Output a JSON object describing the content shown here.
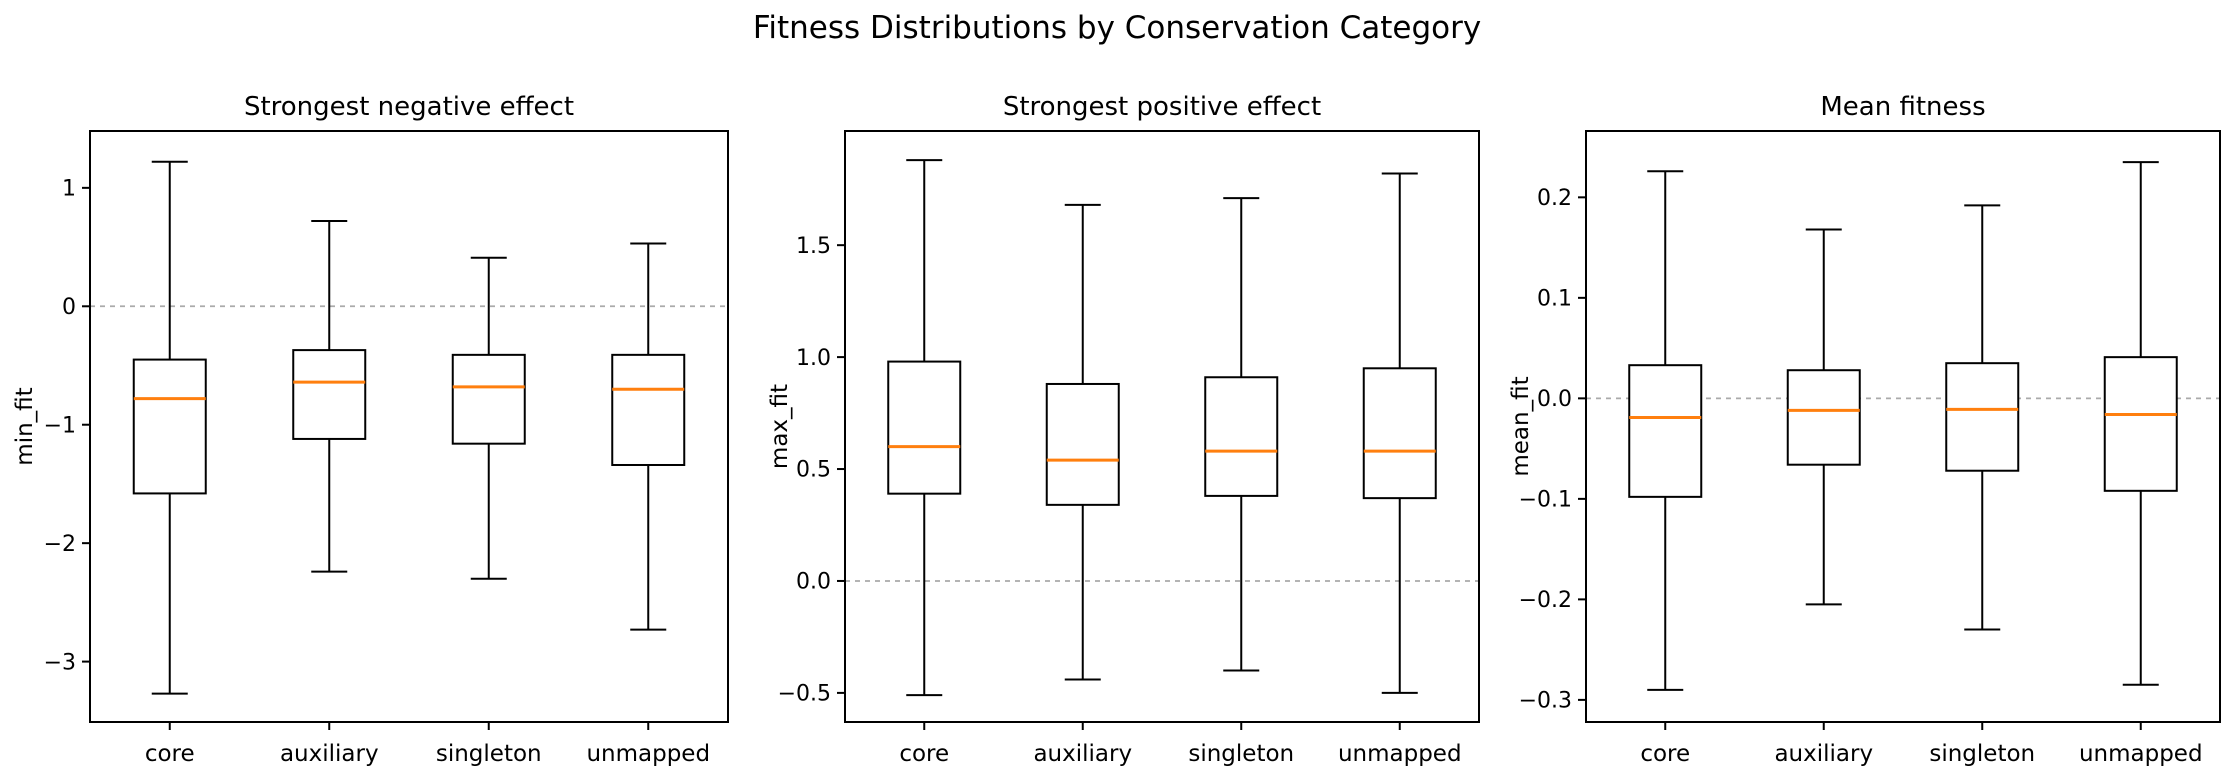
{
  "figure": {
    "suptitle": "Fitness Distributions by Conservation Category",
    "background_color": "#ffffff",
    "box_line_color": "#000000",
    "median_line_color": "#ff7f0e",
    "zero_line_color": "#aaaaaa",
    "categories": [
      "core",
      "auxiliary",
      "singleton",
      "unmapped"
    ]
  },
  "chart_data": [
    {
      "type": "box",
      "title": "Strongest negative effect",
      "ylabel": "min_fit",
      "categories": [
        "core",
        "auxiliary",
        "singleton",
        "unmapped"
      ],
      "yticks": [
        1,
        0,
        -1,
        -2,
        -3
      ],
      "ytick_labels": [
        "1",
        "0",
        "−1",
        "−2",
        "−3"
      ],
      "ylim": [
        -3.51,
        1.48
      ],
      "zero_line": 0,
      "grid": false,
      "series": [
        {
          "category": "core",
          "whisker_low": -3.27,
          "q1": -1.58,
          "median": -0.78,
          "q3": -0.45,
          "whisker_high": 1.22
        },
        {
          "category": "auxiliary",
          "whisker_low": -2.24,
          "q1": -1.12,
          "median": -0.64,
          "q3": -0.37,
          "whisker_high": 0.72
        },
        {
          "category": "singleton",
          "whisker_low": -2.3,
          "q1": -1.16,
          "median": -0.68,
          "q3": -0.41,
          "whisker_high": 0.41
        },
        {
          "category": "unmapped",
          "whisker_low": -2.73,
          "q1": -1.34,
          "median": -0.7,
          "q3": -0.41,
          "whisker_high": 0.53
        }
      ]
    },
    {
      "type": "box",
      "title": "Strongest positive effect",
      "ylabel": "max_fit",
      "categories": [
        "core",
        "auxiliary",
        "singleton",
        "unmapped"
      ],
      "yticks": [
        1.5,
        1.0,
        0.5,
        0.0,
        -0.5
      ],
      "ytick_labels": [
        "1.5",
        "1.0",
        "0.5",
        "0.0",
        "−0.5"
      ],
      "ylim": [
        -0.63,
        2.01
      ],
      "zero_line": 0,
      "grid": false,
      "series": [
        {
          "category": "core",
          "whisker_low": -0.51,
          "q1": 0.39,
          "median": 0.6,
          "q3": 0.98,
          "whisker_high": 1.88
        },
        {
          "category": "auxiliary",
          "whisker_low": -0.44,
          "q1": 0.34,
          "median": 0.54,
          "q3": 0.88,
          "whisker_high": 1.68
        },
        {
          "category": "singleton",
          "whisker_low": -0.4,
          "q1": 0.38,
          "median": 0.58,
          "q3": 0.91,
          "whisker_high": 1.71
        },
        {
          "category": "unmapped",
          "whisker_low": -0.5,
          "q1": 0.37,
          "median": 0.58,
          "q3": 0.95,
          "whisker_high": 1.82
        }
      ]
    },
    {
      "type": "box",
      "title": "Mean fitness",
      "ylabel": "mean_fit",
      "categories": [
        "core",
        "auxiliary",
        "singleton",
        "unmapped"
      ],
      "yticks": [
        0.2,
        0.1,
        0.0,
        -0.1,
        -0.2,
        -0.3
      ],
      "ytick_labels": [
        "0.2",
        "0.1",
        "0.0",
        "−0.1",
        "−0.2",
        "−0.3"
      ],
      "ylim": [
        -0.322,
        0.266
      ],
      "zero_line": 0,
      "grid": false,
      "series": [
        {
          "category": "core",
          "whisker_low": -0.29,
          "q1": -0.098,
          "median": -0.019,
          "q3": 0.033,
          "whisker_high": 0.226
        },
        {
          "category": "auxiliary",
          "whisker_low": -0.205,
          "q1": -0.066,
          "median": -0.012,
          "q3": 0.028,
          "whisker_high": 0.168
        },
        {
          "category": "singleton",
          "whisker_low": -0.23,
          "q1": -0.072,
          "median": -0.011,
          "q3": 0.035,
          "whisker_high": 0.192
        },
        {
          "category": "unmapped",
          "whisker_low": -0.285,
          "q1": -0.092,
          "median": -0.016,
          "q3": 0.041,
          "whisker_high": 0.235
        }
      ]
    }
  ]
}
